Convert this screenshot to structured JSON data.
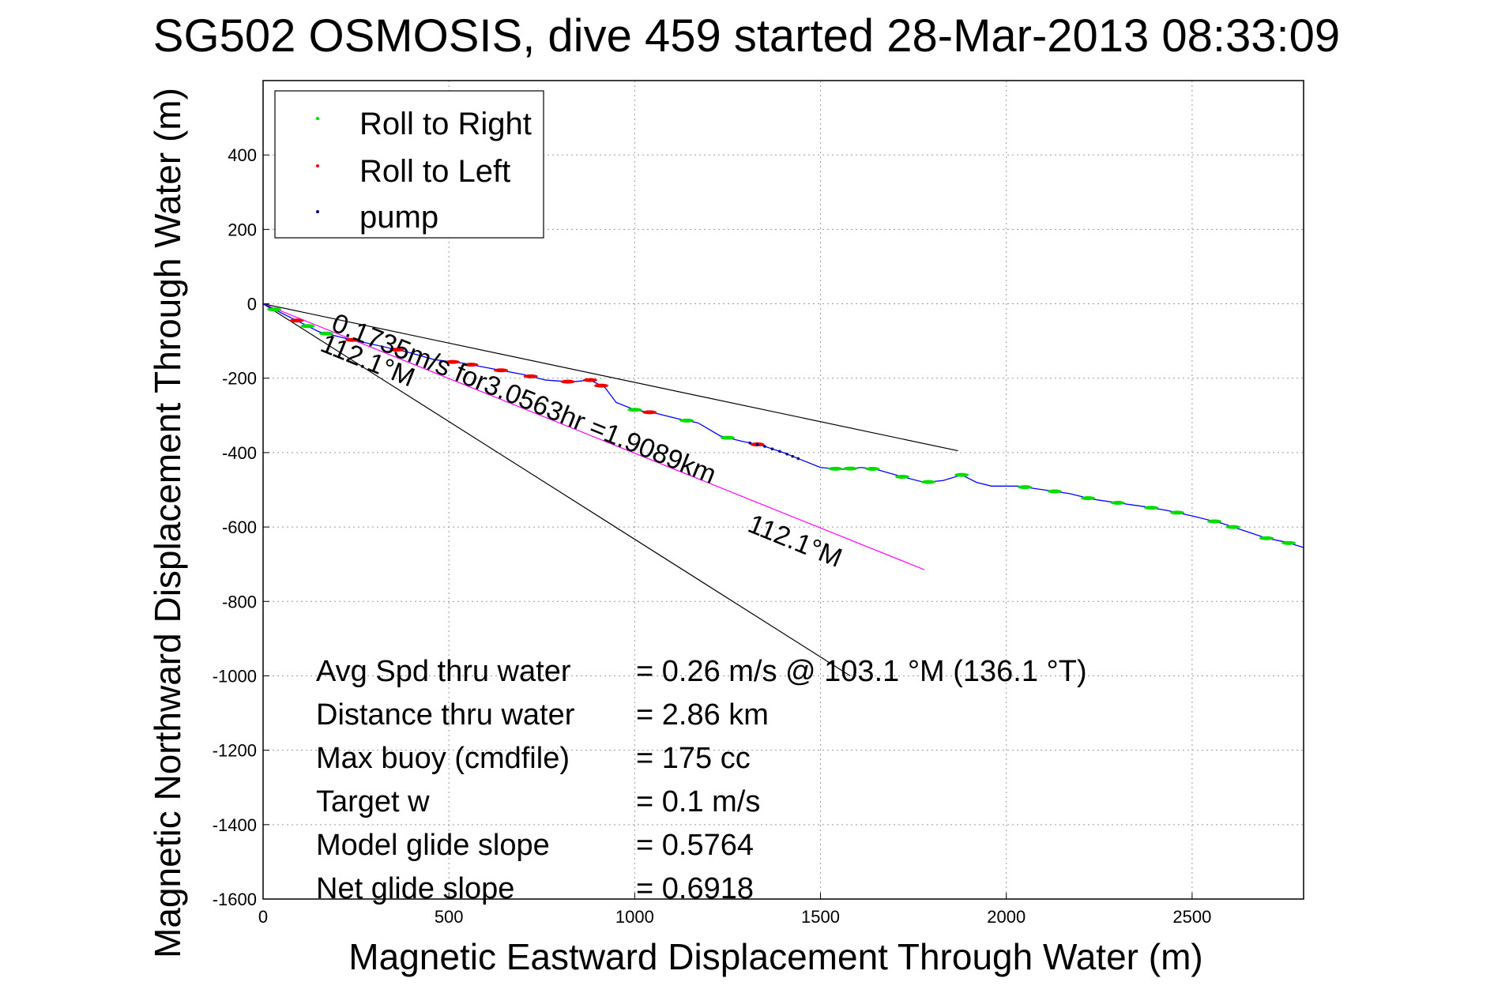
{
  "chart_data": {
    "type": "line",
    "title": "SG502 OSMOSIS, dive 459 started 28-Mar-2013 08:33:09",
    "xlabel": "Magnetic Eastward Displacement Through Water (m)",
    "ylabel": "Magnetic Northward Displacement Through Water (m)",
    "xlim": [
      0,
      2800
    ],
    "ylim": [
      -1600,
      600
    ],
    "xticks": [
      0,
      500,
      1000,
      1500,
      2000,
      2500
    ],
    "yticks": [
      400,
      200,
      0,
      -200,
      -400,
      -600,
      -800,
      -1000,
      -1200,
      -1400,
      -1600
    ],
    "grid": true,
    "legend_location": "top-left",
    "legend": [
      {
        "label": "Roll to Right",
        "color": "#00dd00"
      },
      {
        "label": "Roll to Left",
        "color": "#ee0000"
      },
      {
        "label": "pump",
        "color": "#000080"
      }
    ],
    "track_color": "#0000ff",
    "track": [
      [
        0,
        0
      ],
      [
        60,
        -30
      ],
      [
        150,
        -75
      ],
      [
        230,
        -95
      ],
      [
        300,
        -110
      ],
      [
        390,
        -130
      ],
      [
        460,
        -150
      ],
      [
        540,
        -160
      ],
      [
        620,
        -175
      ],
      [
        700,
        -190
      ],
      [
        760,
        -205
      ],
      [
        830,
        -210
      ],
      [
        880,
        -205
      ],
      [
        920,
        -225
      ],
      [
        950,
        -265
      ],
      [
        1000,
        -285
      ],
      [
        1060,
        -295
      ],
      [
        1120,
        -310
      ],
      [
        1170,
        -320
      ],
      [
        1230,
        -355
      ],
      [
        1290,
        -370
      ],
      [
        1340,
        -380
      ],
      [
        1400,
        -400
      ],
      [
        1450,
        -420
      ],
      [
        1500,
        -440
      ],
      [
        1560,
        -445
      ],
      [
        1610,
        -440
      ],
      [
        1650,
        -445
      ],
      [
        1720,
        -465
      ],
      [
        1780,
        -480
      ],
      [
        1830,
        -475
      ],
      [
        1880,
        -460
      ],
      [
        1920,
        -480
      ],
      [
        1960,
        -490
      ],
      [
        2030,
        -490
      ],
      [
        2100,
        -500
      ],
      [
        2170,
        -510
      ],
      [
        2230,
        -525
      ],
      [
        2300,
        -535
      ],
      [
        2370,
        -545
      ],
      [
        2430,
        -555
      ],
      [
        2500,
        -570
      ],
      [
        2580,
        -590
      ],
      [
        2640,
        -610
      ],
      [
        2700,
        -630
      ],
      [
        2750,
        -640
      ],
      [
        2800,
        -655
      ]
    ],
    "roll_right_x": [
      30,
      120,
      170,
      1000,
      1140,
      1250,
      1540,
      1580,
      1640,
      1720,
      1790,
      1880,
      2050,
      2130,
      2220,
      2300,
      2390,
      2460,
      2560,
      2610,
      2700,
      2760
    ],
    "roll_left_x": [
      90,
      240,
      360,
      510,
      560,
      640,
      720,
      820,
      880,
      910,
      1040,
      1330
    ],
    "pump_x": [
      1310,
      1330,
      1350,
      1370,
      1390,
      1410,
      1425,
      1440
    ],
    "reference_lines": [
      {
        "color": "#000000",
        "points": [
          [
            0,
            0
          ],
          [
            1870,
            -395
          ]
        ]
      },
      {
        "color": "#000000",
        "points": [
          [
            0,
            0
          ],
          [
            1580,
            -1000
          ]
        ]
      },
      {
        "color": "#ff00ff",
        "points": [
          [
            0,
            0
          ],
          [
            1780,
            -715
          ]
        ]
      }
    ],
    "annotations": [
      {
        "text": "0.1735m/s for3.0563hr =1.9089km",
        "x": 180,
        "y": -70,
        "angle": 22
      },
      {
        "text": "112.1°M",
        "x": 150,
        "y": -125,
        "angle": 22
      },
      {
        "text": "112.1°M",
        "x": 1300,
        "y": -610,
        "angle": 22
      }
    ],
    "stats": [
      {
        "label": "Avg Spd thru water",
        "value": "=  0.26 m/s @ 103.1 °M (136.1 °T)"
      },
      {
        "label": "Distance thru water",
        "value": "=  2.86 km"
      },
      {
        "label": "Max buoy (cmdfile)",
        "value": "= 175 cc"
      },
      {
        "label": "Target w",
        "value": "= 0.1 m/s"
      },
      {
        "label": "Model glide slope",
        "value": "= 0.5764"
      },
      {
        "label": "Net glide slope",
        "value": "= 0.6918"
      }
    ]
  }
}
